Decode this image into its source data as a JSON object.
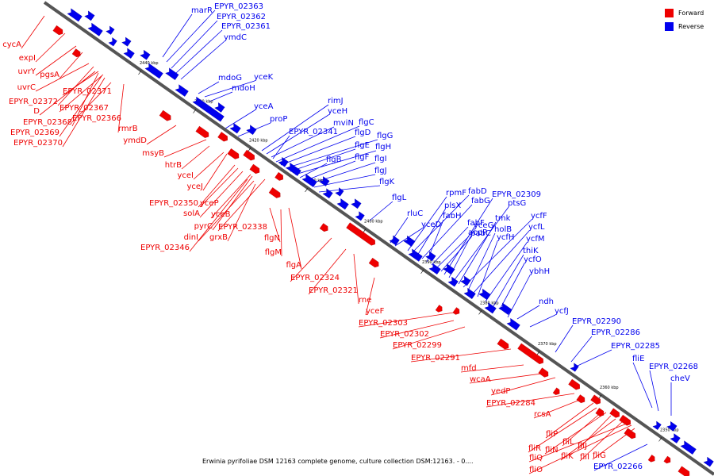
{
  "caption": "Erwinia pyrifoliae DSM 12163 complete genome, culture collection DSM:12163. - 0....",
  "legend": {
    "forward_label": "Forward",
    "forward_color": "#ee0000",
    "reverse_label": "Reverse",
    "reverse_color": "#0000ee"
  },
  "axis": {
    "ticks": [
      "2440 kbp",
      "2430 kbp",
      "2420 kbp",
      "2410 kbp",
      "2400 kbp",
      "2390 kbp",
      "2380 kbp",
      "2370 kbp",
      "2360 kbp",
      "2350 kbp"
    ]
  },
  "genes": {
    "reverse": [
      "marR",
      "EPYR_02363",
      "EPYR_02362",
      "EPYR_02361",
      "ymdC",
      "mdoG",
      "yceK",
      "mdoH",
      "yceA",
      "proP",
      "rimJ",
      "yceH",
      "mviN",
      "flgC",
      "EPYR_02341",
      "flgD",
      "flgG",
      "flgE",
      "flgH",
      "flgB",
      "flgF",
      "flgI",
      "flgJ",
      "flgK",
      "flgL",
      "rpmF",
      "fabD",
      "EPYR_02309",
      "plsX",
      "fabG",
      "rluC",
      "fabH",
      "yceG",
      "ptsG",
      "yceD",
      "tmk",
      "fabF",
      "ycfF",
      "holB",
      "acpP",
      "ycfL",
      "pabC",
      "ycfH",
      "ycfM",
      "thiK",
      "ycfO",
      "ybhH",
      "ndh",
      "ycfJ",
      "EPYR_02290",
      "EPYR_02286",
      "EPYR_02285",
      "fliE",
      "EPYR_02268",
      "cheV",
      "EPYR_02266"
    ],
    "forward": [
      "cycA",
      "expI",
      "uvrY",
      "pgsA",
      "uvrC",
      "EPYR_02371",
      "EPYR_02372",
      "EPYR_02367",
      "D",
      "EPYR_02366",
      "EPYR_02368",
      "rmrB",
      "EPYR_02369",
      "EPYR_02370",
      "ymdD",
      "msyB",
      "htrB",
      "yceI",
      "yceJ",
      "EPYR_02350",
      "yceP",
      "solA",
      "yceB",
      "pyrC",
      "EPYR_02338",
      "dinI",
      "grxB",
      "EPYR_02346",
      "flgN",
      "flgM",
      "flgA",
      "EPYR_02324",
      "EPYR_02321",
      "rne",
      "yceF",
      "EPYR_02303",
      "EPYR_02302",
      "EPYR_02299",
      "EPYR_02291",
      "mfd",
      "wcaA",
      "yedP",
      "EPYR_02284",
      "rcsA",
      "fliP",
      "fliR",
      "fliL",
      "fliN",
      "fliJ",
      "fliK",
      "fliI",
      "fliQ",
      "fliO",
      "fliG"
    ]
  }
}
